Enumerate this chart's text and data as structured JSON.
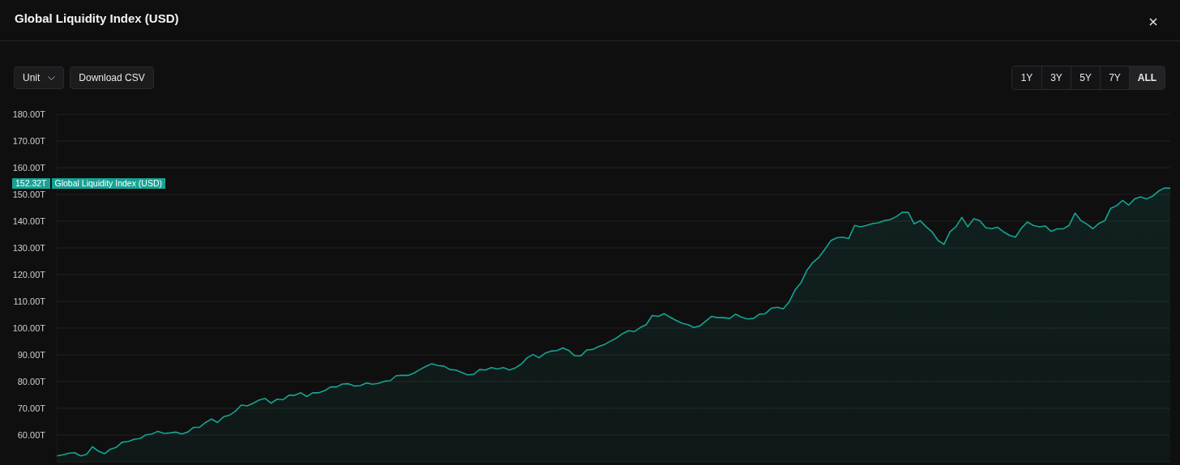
{
  "chart_data": {
    "type": "area",
    "title": "Global Liquidity Index (USD)",
    "annotations": [
      "Unit",
      "Download CSV",
      "1Y",
      "3Y",
      "5Y",
      "7Y",
      "ALL",
      "152.32T"
    ],
    "categories": [
      null,
      null,
      null,
      null,
      null,
      null,
      null,
      null,
      null,
      null,
      null,
      null,
      null,
      null,
      null,
      null,
      null,
      null,
      null,
      null,
      null,
      null,
      null,
      null,
      null,
      null,
      null,
      null,
      null,
      null,
      null,
      null,
      null,
      null,
      null,
      null,
      null,
      null,
      null,
      null,
      null,
      null,
      null,
      null,
      null,
      null,
      null,
      null,
      null,
      null,
      null,
      null,
      null,
      null,
      null,
      null,
      null,
      null,
      null,
      null,
      null,
      null,
      null,
      null,
      null,
      null,
      null,
      null,
      null,
      null,
      null,
      null,
      null,
      null,
      null,
      null,
      null,
      null,
      null,
      null,
      null,
      null,
      null,
      null,
      null,
      null,
      null,
      null,
      null,
      null,
      null,
      null,
      null,
      null,
      null,
      null,
      null,
      null,
      null,
      null,
      null,
      null,
      null,
      null,
      null,
      null,
      null,
      null,
      null,
      null,
      null,
      null,
      null,
      null,
      null,
      null,
      null,
      null,
      null,
      null,
      null,
      null,
      null,
      null,
      null,
      null,
      null,
      null,
      null,
      null,
      null,
      null,
      null,
      null,
      null,
      null,
      null,
      null,
      null,
      null,
      null,
      null,
      null,
      null,
      null,
      null,
      null,
      null,
      null,
      null,
      null,
      null,
      null,
      null,
      null,
      null,
      null,
      null,
      null,
      null,
      null,
      null,
      null,
      null,
      null,
      null,
      null,
      null,
      null,
      null,
      null,
      null,
      null,
      null,
      null,
      null,
      null,
      null,
      null,
      null,
      null,
      null,
      null,
      null,
      null,
      null,
      null,
      null
    ],
    "series": [
      {
        "name": "Global Liquidity Index (USD)",
        "color": "#16a394",
        "values": [
          52.2,
          52.6,
          53.2,
          53.4,
          52.2,
          52.7,
          55.6,
          54.0,
          53.0,
          54.7,
          55.4,
          57.3,
          57.6,
          58.4,
          58.7,
          60.1,
          60.4,
          61.4,
          60.6,
          60.8,
          61.1,
          60.4,
          61.1,
          62.9,
          62.9,
          64.7,
          66.0,
          64.7,
          66.8,
          67.4,
          68.9,
          71.2,
          70.9,
          71.9,
          73.1,
          73.7,
          71.9,
          73.4,
          73.2,
          74.9,
          74.9,
          75.8,
          74.4,
          75.8,
          75.8,
          76.6,
          78.0,
          78.0,
          79.1,
          79.2,
          78.3,
          78.5,
          79.5,
          79.0,
          79.3,
          80.1,
          80.3,
          82.2,
          82.3,
          82.3,
          83.2,
          84.5,
          85.7,
          86.7,
          86.0,
          85.8,
          84.5,
          84.3,
          83.4,
          82.5,
          82.7,
          84.5,
          84.3,
          85.2,
          84.7,
          85.2,
          84.3,
          85.1,
          86.5,
          88.9,
          90.1,
          88.9,
          90.6,
          91.4,
          91.6,
          92.6,
          91.6,
          89.6,
          89.6,
          91.8,
          92.0,
          93.1,
          93.9,
          95.1,
          96.3,
          97.9,
          99.0,
          98.7,
          100.2,
          101.3,
          104.7,
          104.4,
          105.4,
          104.1,
          102.9,
          101.8,
          101.3,
          100.2,
          100.8,
          102.6,
          104.4,
          103.9,
          103.9,
          103.6,
          105.2,
          104.1,
          103.4,
          103.6,
          105.2,
          105.4,
          107.4,
          107.8,
          107.2,
          109.8,
          114.3,
          117.0,
          121.7,
          124.6,
          126.5,
          129.5,
          132.7,
          133.8,
          134.0,
          133.5,
          138.4,
          137.9,
          138.4,
          139.1,
          139.4,
          140.2,
          140.6,
          141.7,
          143.3,
          143.3,
          139.0,
          140.2,
          137.9,
          136.0,
          132.8,
          131.3,
          136.0,
          137.9,
          141.4,
          137.9,
          140.9,
          140.2,
          137.6,
          137.2,
          137.7,
          136.0,
          134.7,
          134.0,
          137.4,
          139.7,
          138.4,
          137.9,
          138.2,
          136.2,
          137.1,
          137.1,
          138.4,
          143.0,
          140.2,
          138.9,
          137.2,
          139.1,
          140.2,
          144.8,
          145.8,
          147.8,
          146.0,
          148.3,
          149.1,
          148.3,
          149.3,
          151.2,
          152.4,
          152.3
        ]
      }
    ],
    "ylim": [
      50,
      180
    ],
    "yticks": [
      {
        "value": 60,
        "label": "60.00T"
      },
      {
        "value": 70,
        "label": "70.00T"
      },
      {
        "value": 80,
        "label": "80.00T"
      },
      {
        "value": 90,
        "label": "90.00T"
      },
      {
        "value": 100,
        "label": "100.00T"
      },
      {
        "value": 110,
        "label": "110.00T"
      },
      {
        "value": 120,
        "label": "120.00T"
      },
      {
        "value": 130,
        "label": "130.00T"
      },
      {
        "value": 140,
        "label": "140.00T"
      },
      {
        "value": 150,
        "label": "150.00T"
      },
      {
        "value": 160,
        "label": "160.00T"
      },
      {
        "value": 170,
        "label": "170.00T"
      },
      {
        "value": 180,
        "label": "180.00T"
      }
    ],
    "grid": "y"
  }
}
